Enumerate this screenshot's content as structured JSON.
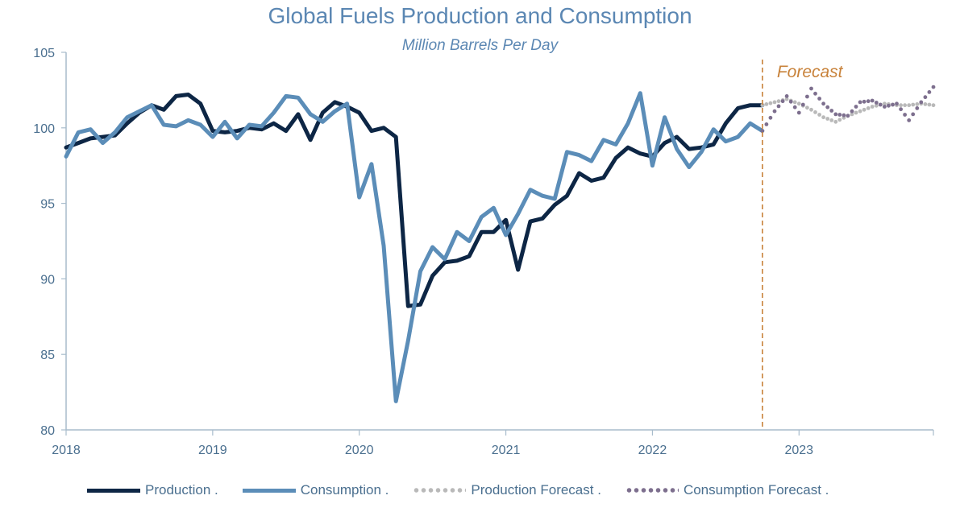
{
  "chart_data": {
    "type": "line",
    "title": "Global Fuels Production and Consumption",
    "subtitle": "Million Barrels Per Day",
    "ylim": [
      80,
      105
    ],
    "yticks": [
      80,
      85,
      90,
      95,
      100,
      105
    ],
    "xticks": [
      "2018",
      "2019",
      "2020",
      "2021",
      "2022",
      "2023"
    ],
    "xlim": [
      "2018-01",
      "2023-12"
    ],
    "grid": false,
    "legend_position": "bottom",
    "annotation": "Forecast",
    "forecast_start": "2022-10",
    "colors": {
      "production": "#0d2645",
      "consumption": "#5b8db8",
      "production_forecast": "#b9b9b9",
      "consumption_forecast": "#7d6f8e",
      "forecast_line": "#c8823a"
    },
    "series": [
      {
        "name": "Production .",
        "style": "solid",
        "x": [
          "2018-01",
          "2018-02",
          "2018-03",
          "2018-04",
          "2018-05",
          "2018-06",
          "2018-07",
          "2018-08",
          "2018-09",
          "2018-10",
          "2018-11",
          "2018-12",
          "2019-01",
          "2019-02",
          "2019-03",
          "2019-04",
          "2019-05",
          "2019-06",
          "2019-07",
          "2019-08",
          "2019-09",
          "2019-10",
          "2019-11",
          "2019-12",
          "2020-01",
          "2020-02",
          "2020-03",
          "2020-04",
          "2020-05",
          "2020-06",
          "2020-07",
          "2020-08",
          "2020-09",
          "2020-10",
          "2020-11",
          "2020-12",
          "2021-01",
          "2021-02",
          "2021-03",
          "2021-04",
          "2021-05",
          "2021-06",
          "2021-07",
          "2021-08",
          "2021-09",
          "2021-10",
          "2021-11",
          "2021-12",
          "2022-01",
          "2022-02",
          "2022-03",
          "2022-04",
          "2022-05",
          "2022-06",
          "2022-07",
          "2022-08",
          "2022-09",
          "2022-10"
        ],
        "values": [
          98.7,
          99.0,
          99.3,
          99.4,
          99.5,
          100.3,
          101.0,
          101.5,
          101.2,
          102.1,
          102.2,
          101.6,
          99.8,
          99.7,
          99.8,
          100.0,
          99.9,
          100.3,
          99.8,
          100.9,
          99.2,
          101.0,
          101.7,
          101.4,
          101.0,
          99.8,
          100.0,
          99.4,
          88.2,
          88.3,
          90.2,
          91.1,
          91.2,
          91.5,
          93.1,
          93.1,
          93.9,
          90.6,
          93.8,
          94.0,
          94.9,
          95.5,
          97.0,
          96.5,
          96.7,
          98.0,
          98.7,
          98.3,
          98.1,
          99.0,
          99.4,
          98.6,
          98.7,
          98.9,
          100.3,
          101.3,
          101.5,
          101.5
        ]
      },
      {
        "name": "Consumption .",
        "style": "solid",
        "x": [
          "2018-01",
          "2018-02",
          "2018-03",
          "2018-04",
          "2018-05",
          "2018-06",
          "2018-07",
          "2018-08",
          "2018-09",
          "2018-10",
          "2018-11",
          "2018-12",
          "2019-01",
          "2019-02",
          "2019-03",
          "2019-04",
          "2019-05",
          "2019-06",
          "2019-07",
          "2019-08",
          "2019-09",
          "2019-10",
          "2019-11",
          "2019-12",
          "2020-01",
          "2020-02",
          "2020-03",
          "2020-04",
          "2020-05",
          "2020-06",
          "2020-07",
          "2020-08",
          "2020-09",
          "2020-10",
          "2020-11",
          "2020-12",
          "2021-01",
          "2021-02",
          "2021-03",
          "2021-04",
          "2021-05",
          "2021-06",
          "2021-07",
          "2021-08",
          "2021-09",
          "2021-10",
          "2021-11",
          "2021-12",
          "2022-01",
          "2022-02",
          "2022-03",
          "2022-04",
          "2022-05",
          "2022-06",
          "2022-07",
          "2022-08",
          "2022-09",
          "2022-10"
        ],
        "values": [
          98.1,
          99.7,
          99.9,
          99.0,
          99.7,
          100.7,
          101.1,
          101.5,
          100.2,
          100.1,
          100.5,
          100.2,
          99.4,
          100.4,
          99.3,
          100.2,
          100.1,
          101.0,
          102.1,
          102.0,
          100.9,
          100.4,
          101.1,
          101.6,
          95.4,
          97.6,
          92.2,
          81.9,
          85.9,
          90.5,
          92.1,
          91.3,
          93.1,
          92.5,
          94.1,
          94.7,
          92.9,
          94.3,
          95.9,
          95.5,
          95.3,
          98.4,
          98.2,
          97.8,
          99.2,
          98.9,
          100.3,
          102.3,
          97.5,
          100.7,
          98.6,
          97.4,
          98.4,
          99.9,
          99.1,
          99.4,
          100.3,
          99.8
        ]
      },
      {
        "name": "Production Forecast .",
        "style": "dotted",
        "x": [
          "2022-10",
          "2022-11",
          "2022-12",
          "2023-01",
          "2023-02",
          "2023-03",
          "2023-04",
          "2023-05",
          "2023-06",
          "2023-07",
          "2023-08",
          "2023-09",
          "2023-10",
          "2023-11",
          "2023-12"
        ],
        "values": [
          101.5,
          101.7,
          101.9,
          101.6,
          101.2,
          100.7,
          100.4,
          100.8,
          101.1,
          101.4,
          101.6,
          101.5,
          101.5,
          101.6,
          101.5
        ]
      },
      {
        "name": "Consumption Forecast .",
        "style": "dotted",
        "x": [
          "2022-10",
          "2022-11",
          "2022-12",
          "2023-01",
          "2023-02",
          "2023-03",
          "2023-04",
          "2023-05",
          "2023-06",
          "2023-07",
          "2023-08",
          "2023-09",
          "2023-10",
          "2023-11",
          "2023-12"
        ],
        "values": [
          99.8,
          101.1,
          102.1,
          101.0,
          102.6,
          101.6,
          100.9,
          100.8,
          101.7,
          101.8,
          101.4,
          101.6,
          100.5,
          101.7,
          102.7
        ]
      }
    ]
  }
}
